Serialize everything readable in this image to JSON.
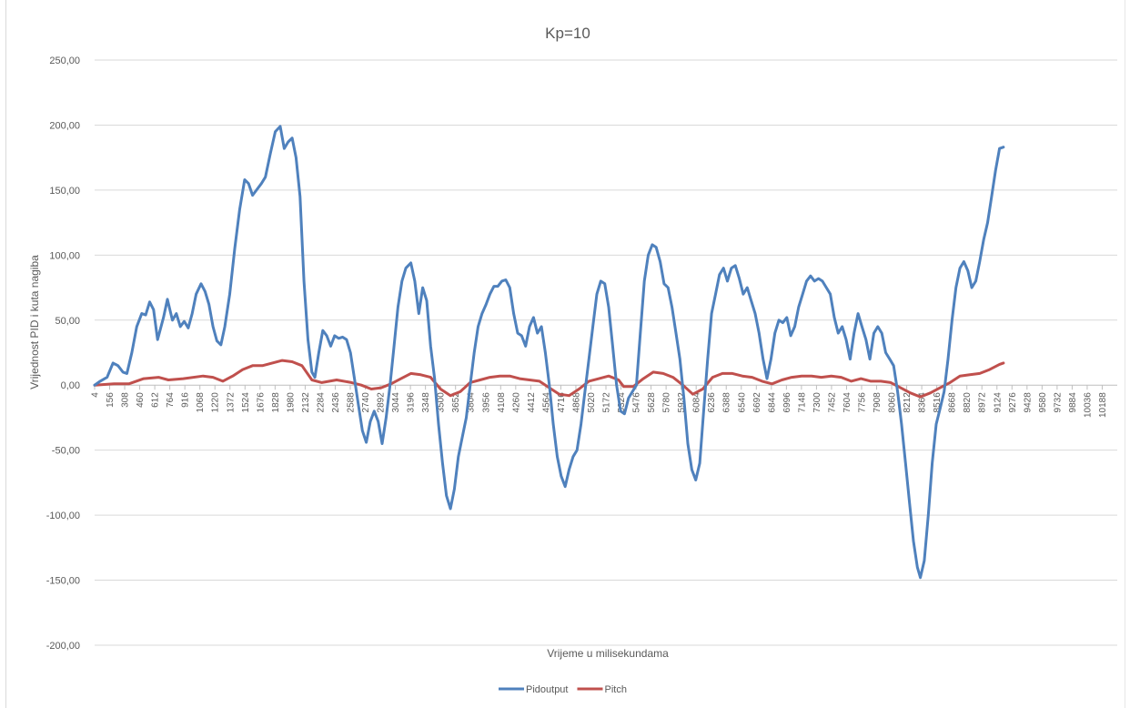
{
  "chart_data": {
    "type": "line",
    "title": "Kp=10",
    "xlabel": "Vrijeme u milisekundama",
    "ylabel": "Vrijednost PID i kuta nagiba",
    "ylim": [
      -200,
      250
    ],
    "ytick_step": 50,
    "ytick_labels": [
      "250,00",
      "200,00",
      "150,00",
      "100,00",
      "50,00",
      "0,00",
      "-50,00",
      "-100,00",
      "-150,00",
      "-200,00"
    ],
    "xlim": [
      4,
      10188
    ],
    "x_tick_labels": [
      "4",
      "156",
      "308",
      "460",
      "612",
      "764",
      "916",
      "1068",
      "1220",
      "1372",
      "1524",
      "1676",
      "1828",
      "1980",
      "2132",
      "2284",
      "2436",
      "2588",
      "2740",
      "2892",
      "3044",
      "3196",
      "3348",
      "3500",
      "3652",
      "3804",
      "3956",
      "4108",
      "4260",
      "4412",
      "4564",
      "4716",
      "4868",
      "5020",
      "5172",
      "5324",
      "5476",
      "5628",
      "5780",
      "5932",
      "6084",
      "6236",
      "6388",
      "6540",
      "6692",
      "6844",
      "6996",
      "7148",
      "7300",
      "7452",
      "7604",
      "7756",
      "7908",
      "8060",
      "8212",
      "8364",
      "8516",
      "8668",
      "8820",
      "8972",
      "9124",
      "9276",
      "9428",
      "9580",
      "9732",
      "9884",
      "10036",
      "10188"
    ],
    "grid": "horizontal",
    "legend": "bottom",
    "series": [
      {
        "name": "Pidoutput",
        "color": "#4f81bd",
        "points": [
          [
            4,
            0
          ],
          [
            60,
            3
          ],
          [
            130,
            6
          ],
          [
            190,
            17
          ],
          [
            240,
            15
          ],
          [
            290,
            10
          ],
          [
            330,
            9
          ],
          [
            380,
            25
          ],
          [
            430,
            45
          ],
          [
            480,
            55
          ],
          [
            520,
            54
          ],
          [
            560,
            64
          ],
          [
            600,
            58
          ],
          [
            640,
            35
          ],
          [
            700,
            52
          ],
          [
            740,
            66
          ],
          [
            790,
            50
          ],
          [
            830,
            55
          ],
          [
            870,
            45
          ],
          [
            910,
            49
          ],
          [
            950,
            44
          ],
          [
            990,
            55
          ],
          [
            1030,
            70
          ],
          [
            1080,
            78
          ],
          [
            1120,
            72
          ],
          [
            1160,
            62
          ],
          [
            1200,
            45
          ],
          [
            1240,
            34
          ],
          [
            1280,
            31
          ],
          [
            1320,
            45
          ],
          [
            1370,
            70
          ],
          [
            1420,
            105
          ],
          [
            1470,
            135
          ],
          [
            1520,
            158
          ],
          [
            1560,
            155
          ],
          [
            1600,
            146
          ],
          [
            1640,
            150
          ],
          [
            1690,
            155
          ],
          [
            1730,
            160
          ],
          [
            1780,
            178
          ],
          [
            1830,
            195
          ],
          [
            1880,
            199
          ],
          [
            1920,
            182
          ],
          [
            1960,
            187
          ],
          [
            2000,
            190
          ],
          [
            2040,
            175
          ],
          [
            2080,
            145
          ],
          [
            2120,
            80
          ],
          [
            2160,
            35
          ],
          [
            2200,
            10
          ],
          [
            2230,
            6
          ],
          [
            2270,
            25
          ],
          [
            2310,
            42
          ],
          [
            2350,
            38
          ],
          [
            2390,
            30
          ],
          [
            2430,
            38
          ],
          [
            2470,
            36
          ],
          [
            2510,
            37
          ],
          [
            2550,
            35
          ],
          [
            2590,
            25
          ],
          [
            2630,
            5
          ],
          [
            2670,
            -15
          ],
          [
            2710,
            -35
          ],
          [
            2750,
            -44
          ],
          [
            2790,
            -28
          ],
          [
            2830,
            -20
          ],
          [
            2870,
            -28
          ],
          [
            2910,
            -45
          ],
          [
            2950,
            -25
          ],
          [
            2990,
            0
          ],
          [
            3030,
            30
          ],
          [
            3070,
            60
          ],
          [
            3110,
            80
          ],
          [
            3150,
            90
          ],
          [
            3200,
            94
          ],
          [
            3240,
            80
          ],
          [
            3280,
            55
          ],
          [
            3320,
            75
          ],
          [
            3360,
            65
          ],
          [
            3400,
            30
          ],
          [
            3440,
            5
          ],
          [
            3480,
            -30
          ],
          [
            3520,
            -60
          ],
          [
            3560,
            -85
          ],
          [
            3600,
            -95
          ],
          [
            3640,
            -80
          ],
          [
            3680,
            -55
          ],
          [
            3720,
            -40
          ],
          [
            3760,
            -25
          ],
          [
            3800,
            0
          ],
          [
            3840,
            25
          ],
          [
            3880,
            45
          ],
          [
            3920,
            55
          ],
          [
            3960,
            62
          ],
          [
            4000,
            70
          ],
          [
            4040,
            76
          ],
          [
            4080,
            76
          ],
          [
            4120,
            80
          ],
          [
            4160,
            81
          ],
          [
            4200,
            75
          ],
          [
            4240,
            55
          ],
          [
            4280,
            40
          ],
          [
            4320,
            38
          ],
          [
            4360,
            30
          ],
          [
            4400,
            45
          ],
          [
            4440,
            52
          ],
          [
            4480,
            40
          ],
          [
            4520,
            45
          ],
          [
            4560,
            25
          ],
          [
            4600,
            0
          ],
          [
            4640,
            -30
          ],
          [
            4680,
            -55
          ],
          [
            4720,
            -70
          ],
          [
            4760,
            -78
          ],
          [
            4800,
            -65
          ],
          [
            4840,
            -55
          ],
          [
            4880,
            -50
          ],
          [
            4920,
            -30
          ],
          [
            4960,
            -5
          ],
          [
            5000,
            20
          ],
          [
            5040,
            45
          ],
          [
            5080,
            70
          ],
          [
            5120,
            80
          ],
          [
            5160,
            78
          ],
          [
            5200,
            60
          ],
          [
            5240,
            30
          ],
          [
            5280,
            0
          ],
          [
            5320,
            -20
          ],
          [
            5360,
            -22
          ],
          [
            5400,
            -10
          ],
          [
            5440,
            -5
          ],
          [
            5480,
            0
          ],
          [
            5520,
            40
          ],
          [
            5560,
            80
          ],
          [
            5600,
            100
          ],
          [
            5640,
            108
          ],
          [
            5680,
            106
          ],
          [
            5720,
            95
          ],
          [
            5760,
            78
          ],
          [
            5800,
            75
          ],
          [
            5840,
            60
          ],
          [
            5880,
            40
          ],
          [
            5920,
            20
          ],
          [
            5960,
            -10
          ],
          [
            6000,
            -45
          ],
          [
            6040,
            -65
          ],
          [
            6080,
            -73
          ],
          [
            6120,
            -60
          ],
          [
            6160,
            -20
          ],
          [
            6200,
            20
          ],
          [
            6240,
            55
          ],
          [
            6280,
            70
          ],
          [
            6320,
            85
          ],
          [
            6360,
            90
          ],
          [
            6400,
            80
          ],
          [
            6440,
            90
          ],
          [
            6480,
            92
          ],
          [
            6520,
            82
          ],
          [
            6560,
            70
          ],
          [
            6600,
            75
          ],
          [
            6640,
            65
          ],
          [
            6680,
            55
          ],
          [
            6720,
            40
          ],
          [
            6760,
            20
          ],
          [
            6800,
            5
          ],
          [
            6840,
            20
          ],
          [
            6880,
            40
          ],
          [
            6920,
            50
          ],
          [
            6960,
            48
          ],
          [
            7000,
            52
          ],
          [
            7040,
            38
          ],
          [
            7080,
            45
          ],
          [
            7120,
            60
          ],
          [
            7160,
            70
          ],
          [
            7200,
            80
          ],
          [
            7240,
            84
          ],
          [
            7280,
            80
          ],
          [
            7320,
            82
          ],
          [
            7360,
            80
          ],
          [
            7400,
            75
          ],
          [
            7440,
            70
          ],
          [
            7480,
            52
          ],
          [
            7520,
            40
          ],
          [
            7560,
            45
          ],
          [
            7600,
            35
          ],
          [
            7640,
            20
          ],
          [
            7680,
            40
          ],
          [
            7720,
            55
          ],
          [
            7760,
            45
          ],
          [
            7800,
            35
          ],
          [
            7840,
            20
          ],
          [
            7880,
            40
          ],
          [
            7920,
            45
          ],
          [
            7960,
            40
          ],
          [
            8000,
            25
          ],
          [
            8040,
            20
          ],
          [
            8080,
            15
          ],
          [
            8120,
            -5
          ],
          [
            8160,
            -30
          ],
          [
            8200,
            -60
          ],
          [
            8240,
            -90
          ],
          [
            8280,
            -120
          ],
          [
            8320,
            -140
          ],
          [
            8350,
            -148
          ],
          [
            8390,
            -135
          ],
          [
            8430,
            -100
          ],
          [
            8470,
            -60
          ],
          [
            8510,
            -30
          ],
          [
            8550,
            -18
          ],
          [
            8590,
            -5
          ],
          [
            8630,
            20
          ],
          [
            8670,
            50
          ],
          [
            8710,
            75
          ],
          [
            8750,
            90
          ],
          [
            8790,
            95
          ],
          [
            8830,
            88
          ],
          [
            8870,
            75
          ],
          [
            8910,
            80
          ],
          [
            8950,
            95
          ],
          [
            8990,
            112
          ],
          [
            9030,
            125
          ],
          [
            9070,
            145
          ],
          [
            9110,
            165
          ],
          [
            9150,
            182
          ],
          [
            9190,
            183
          ]
        ]
      },
      {
        "name": "Pitch",
        "color": "#c0504d",
        "points": [
          [
            4,
            0
          ],
          [
            200,
            1
          ],
          [
            350,
            1
          ],
          [
            500,
            5
          ],
          [
            650,
            6
          ],
          [
            750,
            4
          ],
          [
            900,
            5
          ],
          [
            1100,
            7
          ],
          [
            1200,
            6
          ],
          [
            1300,
            3
          ],
          [
            1400,
            7
          ],
          [
            1500,
            12
          ],
          [
            1600,
            15
          ],
          [
            1700,
            15
          ],
          [
            1800,
            17
          ],
          [
            1900,
            19
          ],
          [
            2000,
            18
          ],
          [
            2100,
            15
          ],
          [
            2200,
            4
          ],
          [
            2300,
            2
          ],
          [
            2450,
            4
          ],
          [
            2600,
            2
          ],
          [
            2700,
            0
          ],
          [
            2800,
            -3
          ],
          [
            2900,
            -2
          ],
          [
            3000,
            1
          ],
          [
            3100,
            5
          ],
          [
            3200,
            9
          ],
          [
            3300,
            8
          ],
          [
            3400,
            6
          ],
          [
            3500,
            -3
          ],
          [
            3600,
            -8
          ],
          [
            3700,
            -5
          ],
          [
            3800,
            2
          ],
          [
            3900,
            4
          ],
          [
            4000,
            6
          ],
          [
            4100,
            7
          ],
          [
            4200,
            7
          ],
          [
            4300,
            5
          ],
          [
            4400,
            4
          ],
          [
            4500,
            3
          ],
          [
            4600,
            -2
          ],
          [
            4700,
            -7
          ],
          [
            4800,
            -8
          ],
          [
            4900,
            -3
          ],
          [
            5000,
            3
          ],
          [
            5100,
            5
          ],
          [
            5200,
            7
          ],
          [
            5300,
            4
          ],
          [
            5350,
            -1
          ],
          [
            5450,
            -1
          ],
          [
            5550,
            5
          ],
          [
            5650,
            10
          ],
          [
            5750,
            9
          ],
          [
            5850,
            6
          ],
          [
            5950,
            0
          ],
          [
            6050,
            -7
          ],
          [
            6150,
            -3
          ],
          [
            6250,
            6
          ],
          [
            6350,
            9
          ],
          [
            6450,
            9
          ],
          [
            6550,
            7
          ],
          [
            6650,
            6
          ],
          [
            6750,
            3
          ],
          [
            6850,
            1
          ],
          [
            6950,
            4
          ],
          [
            7050,
            6
          ],
          [
            7150,
            7
          ],
          [
            7250,
            7
          ],
          [
            7350,
            6
          ],
          [
            7450,
            7
          ],
          [
            7550,
            6
          ],
          [
            7650,
            3
          ],
          [
            7750,
            5
          ],
          [
            7850,
            3
          ],
          [
            7950,
            3
          ],
          [
            8050,
            2
          ],
          [
            8150,
            -2
          ],
          [
            8250,
            -6
          ],
          [
            8350,
            -9
          ],
          [
            8450,
            -6
          ],
          [
            8550,
            -2
          ],
          [
            8650,
            2
          ],
          [
            8750,
            7
          ],
          [
            8850,
            8
          ],
          [
            8950,
            9
          ],
          [
            9050,
            12
          ],
          [
            9150,
            16
          ],
          [
            9190,
            17
          ]
        ]
      }
    ]
  }
}
